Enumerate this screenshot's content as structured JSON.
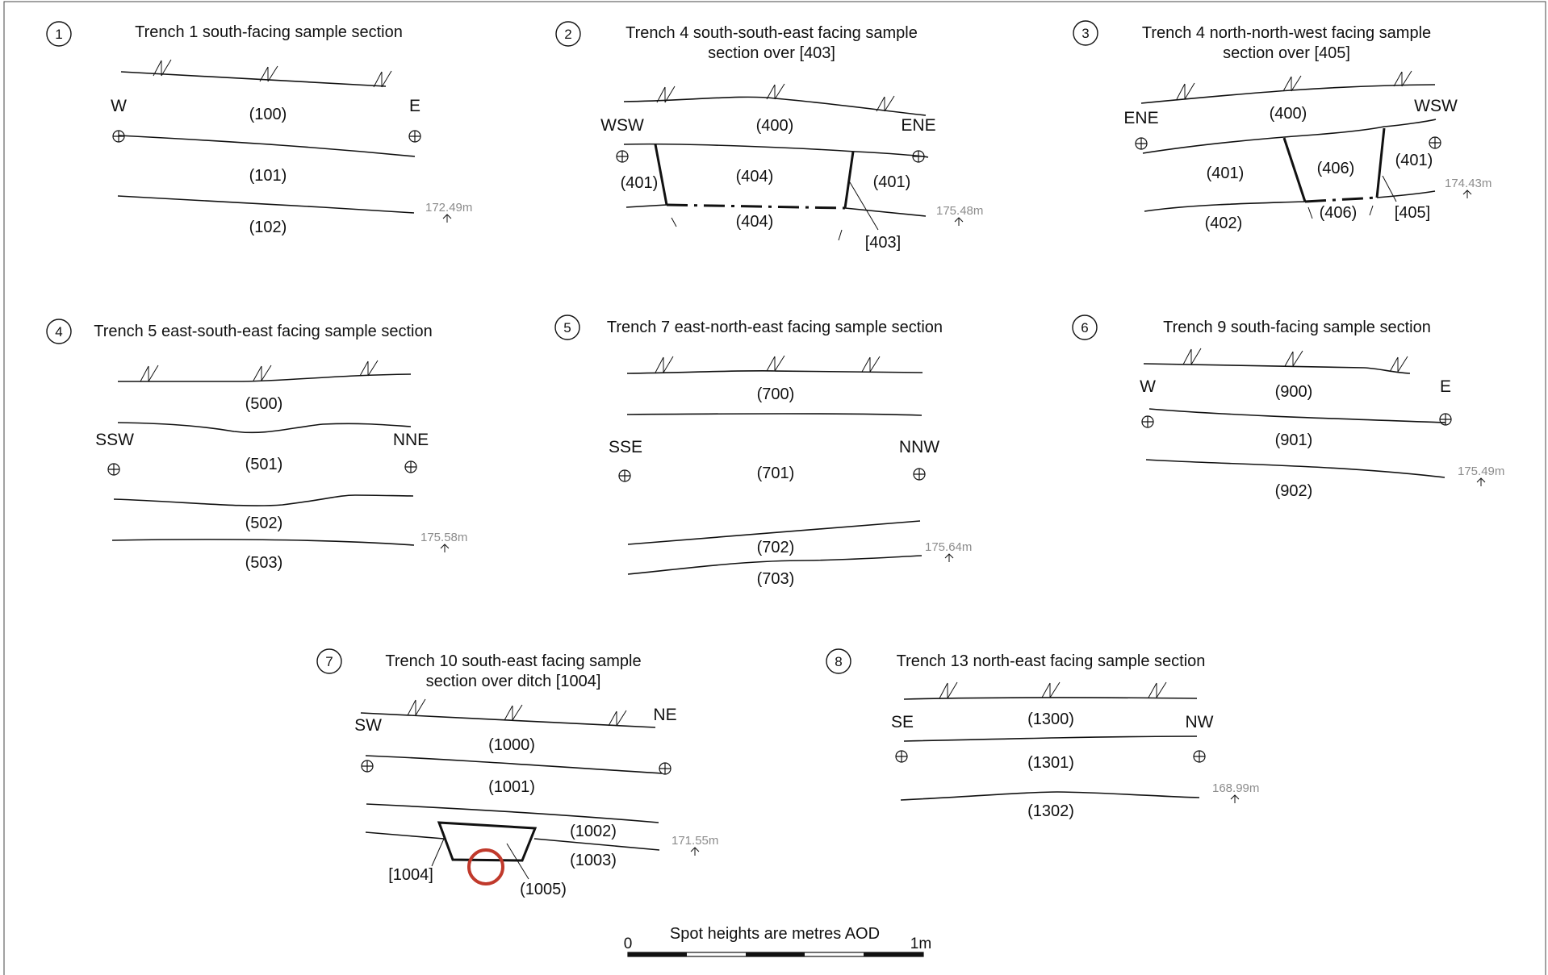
{
  "note": "Spot heights are metres AOD",
  "scale": {
    "left": "0",
    "right": "1m"
  },
  "highlight_color": "#c0392b",
  "sections": [
    {
      "num": "1",
      "title": [
        "Trench 1 south-facing sample section"
      ],
      "dirs": [
        "W",
        "E"
      ],
      "height": "172.49m",
      "contexts": [
        "(100)",
        "(101)",
        "(102)"
      ]
    },
    {
      "num": "2",
      "title": [
        "Trench 4 south-south-east facing sample",
        "section over [403]"
      ],
      "dirs": [
        "WSW",
        "ENE"
      ],
      "height": "175.48m",
      "contexts": [
        "(400)",
        "(404)",
        "(401)",
        "(401)",
        "(404)",
        "[403]"
      ]
    },
    {
      "num": "3",
      "title": [
        "Trench 4 north-north-west facing sample",
        "section over [405]"
      ],
      "dirs": [
        "ENE",
        "WSW"
      ],
      "height": "174.43m",
      "contexts": [
        "(400)",
        "(401)",
        "(406)",
        "(401)",
        "(402)",
        "(406)",
        "[405]"
      ]
    },
    {
      "num": "4",
      "title": [
        "Trench 5 east-south-east facing sample section"
      ],
      "dirs": [
        "SSW",
        "NNE"
      ],
      "height": "175.58m",
      "contexts": [
        "(500)",
        "(501)",
        "(502)",
        "(503)"
      ]
    },
    {
      "num": "5",
      "title": [
        "Trench 7 east-north-east facing sample section"
      ],
      "dirs": [
        "SSE",
        "NNW"
      ],
      "height": "175.64m",
      "contexts": [
        "(700)",
        "(701)",
        "(702)",
        "(703)"
      ]
    },
    {
      "num": "6",
      "title": [
        "Trench 9 south-facing sample section"
      ],
      "dirs": [
        "W",
        "E"
      ],
      "height": "175.49m",
      "contexts": [
        "(900)",
        "(901)",
        "(902)"
      ]
    },
    {
      "num": "7",
      "title": [
        "Trench 10 south-east facing sample",
        "section over ditch [1004]"
      ],
      "dirs": [
        "SW",
        "NE"
      ],
      "height": "171.55m",
      "contexts": [
        "(1000)",
        "(1001)",
        "(1002)",
        "(1003)",
        "[1004]",
        "(1005)"
      ]
    },
    {
      "num": "8",
      "title": [
        "Trench 13 north-east facing sample section"
      ],
      "dirs": [
        "SE",
        "NW"
      ],
      "height": "168.99m",
      "contexts": [
        "(1300)",
        "(1301)",
        "(1302)"
      ]
    }
  ]
}
